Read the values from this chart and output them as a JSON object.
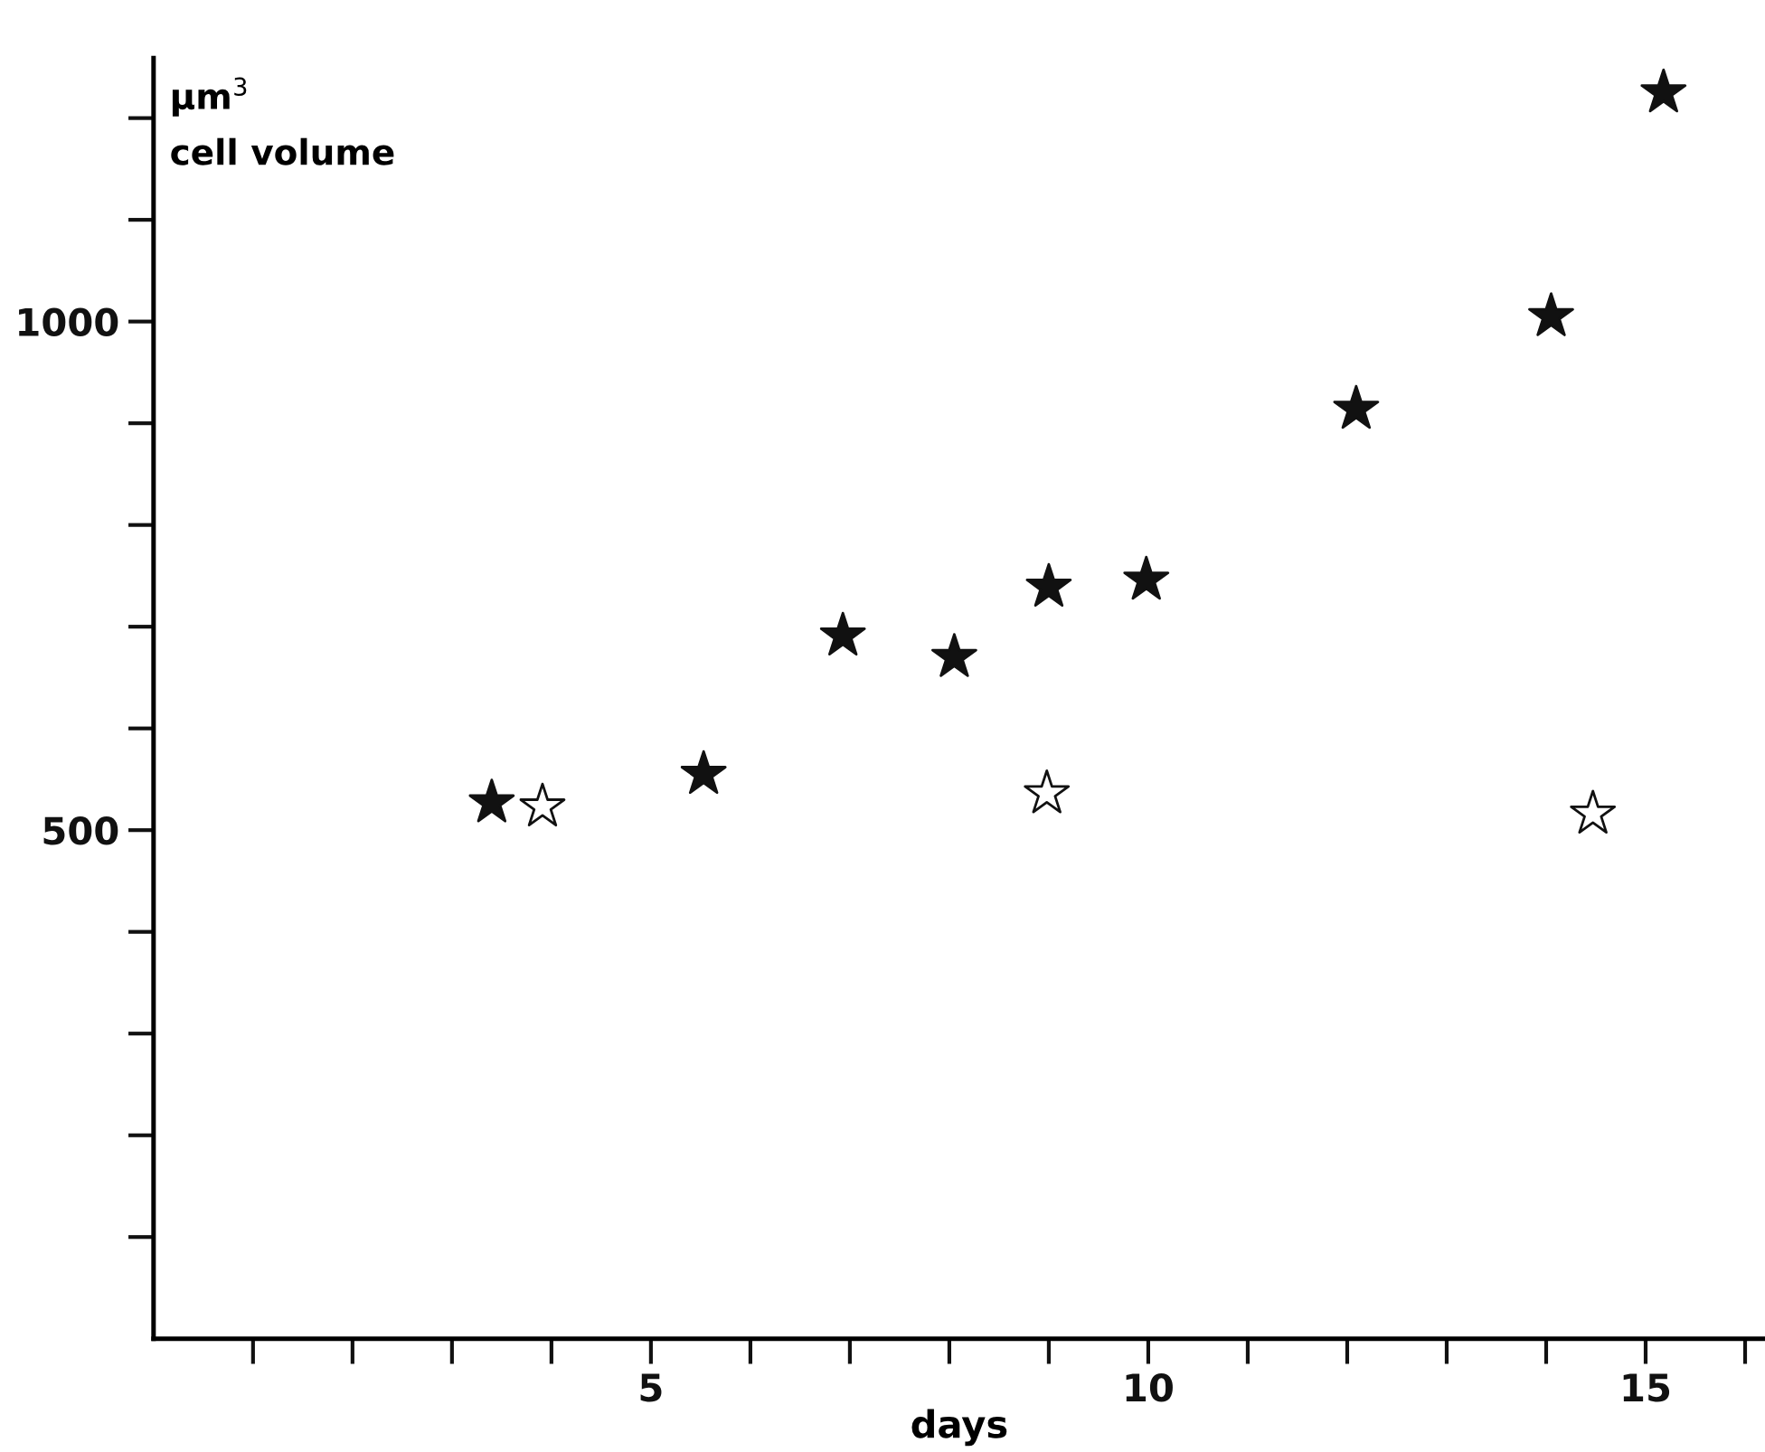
{
  "chart_data": {
    "type": "scatter",
    "xlabel": "days",
    "ylabel": "μm$^{3}$\ncell volume",
    "marker": "star",
    "grid": false,
    "legend": false,
    "xlim": [
      0,
      16.2
    ],
    "ylim": [
      0,
      1259
    ],
    "xticks": [
      {
        "value": 1,
        "label": null
      },
      {
        "value": 2,
        "label": null
      },
      {
        "value": 3,
        "label": null
      },
      {
        "value": 4,
        "label": null
      },
      5,
      {
        "value": 6,
        "label": null
      },
      {
        "value": 7,
        "label": null
      },
      {
        "value": 8,
        "label": null
      },
      {
        "value": 9,
        "label": null
      },
      10,
      {
        "value": 11,
        "label": null
      },
      {
        "value": 12,
        "label": null
      },
      {
        "value": 13,
        "label": null
      },
      {
        "value": 14,
        "label": null
      },
      15,
      {
        "value": 16,
        "label": null
      }
    ],
    "yticks": [
      {
        "value": 100,
        "label": null
      },
      {
        "value": 200,
        "label": null
      },
      {
        "value": 300,
        "label": null
      },
      {
        "value": 400,
        "label": null
      },
      500,
      {
        "value": 600,
        "label": null
      },
      {
        "value": 700,
        "label": null
      },
      {
        "value": 800,
        "label": null
      },
      {
        "value": 900,
        "label": null
      },
      1000,
      {
        "value": 1100,
        "label": null
      },
      {
        "value": 1200,
        "label": null
      }
    ],
    "series": [
      {
        "color": "#111111",
        "x": [
          3.4,
          5.53,
          6.93,
          8.05,
          9.0,
          9.98,
          12.09,
          14.05,
          15.18
        ],
        "values": [
          527,
          555,
          691,
          670,
          739,
          746,
          914,
          1005,
          1225
        ]
      },
      {
        "color": "#ffffff",
        "x": [
          3.91,
          8.98,
          14.47
        ],
        "values": [
          523,
          536,
          516
        ]
      }
    ]
  }
}
